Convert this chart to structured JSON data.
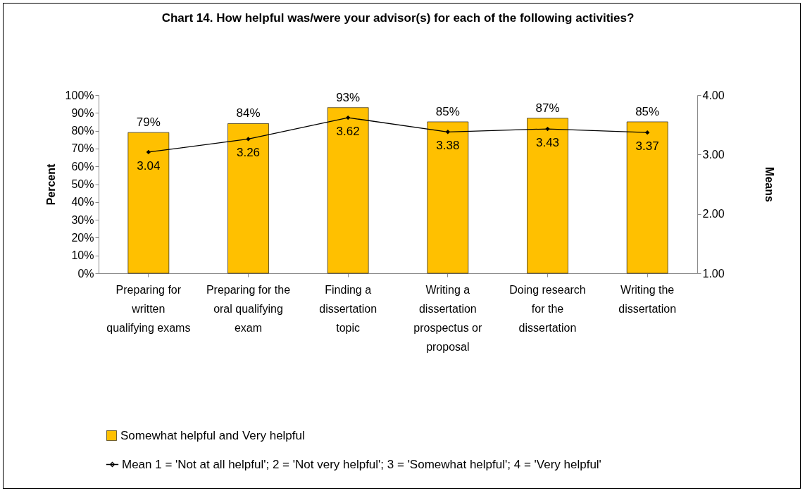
{
  "chart_data": {
    "type": "bar",
    "title": "Chart 14.  How helpful was/were your advisor(s) for each of the following activities?",
    "categories": [
      "Preparing for written qualifying exams",
      "Preparing for the oral qualifying exam",
      "Finding a dissertation topic",
      "Writing a dissertation prospectus or proposal",
      "Doing research for the dissertation",
      "Writing the dissertation"
    ],
    "series": [
      {
        "name": "Somewhat helpful and Very helpful",
        "color": "#ffc000",
        "values": [
          79,
          84,
          93,
          85,
          87,
          85
        ],
        "value_labels": [
          "79%",
          "84%",
          "93%",
          "85%",
          "87%",
          "85%"
        ]
      },
      {
        "name": "Mean 1 = 'Not at all helpful'; 2 = 'Not very helpful'; 3 = 'Somewhat helpful'; 4 = 'Very helpful'",
        "type": "line",
        "axis": "y2",
        "color": "#000000",
        "marker": "diamond",
        "line_style": "solid",
        "values": [
          3.04,
          3.26,
          3.62,
          3.38,
          3.43,
          3.37
        ],
        "value_labels": [
          "3.04",
          "3.26",
          "3.62",
          "3.38",
          "3.43",
          "3.37"
        ]
      }
    ],
    "ylabel": "Percent",
    "y2label": "Means",
    "ylim": [
      0,
      100
    ],
    "yticks": [
      {
        "value": 0,
        "label": "0%"
      },
      {
        "value": 10,
        "label": "10%"
      },
      {
        "value": 20,
        "label": "20%"
      },
      {
        "value": 30,
        "label": "30%"
      },
      {
        "value": 40,
        "label": "40%"
      },
      {
        "value": 50,
        "label": "50%"
      },
      {
        "value": 60,
        "label": "60%"
      },
      {
        "value": 70,
        "label": "70%"
      },
      {
        "value": 80,
        "label": "80%"
      },
      {
        "value": 90,
        "label": "90%"
      },
      {
        "value": 100,
        "label": "100%"
      }
    ],
    "y2lim": [
      1,
      4
    ],
    "y2ticks": [
      {
        "value": 1,
        "label": "1.00"
      },
      {
        "value": 2,
        "label": "2.00"
      },
      {
        "value": 3,
        "label": "3.00"
      },
      {
        "value": 4,
        "label": "4.00"
      }
    ],
    "grid": false,
    "legend": "bottom"
  }
}
